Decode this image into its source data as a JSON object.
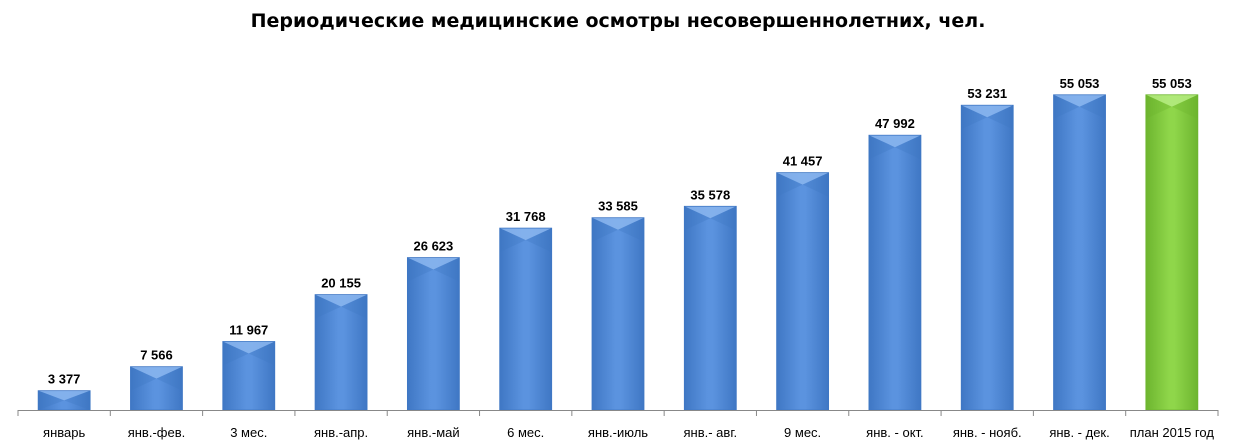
{
  "chart_data": {
    "type": "bar",
    "title": "Периодические медицинские осмотры несовершеннолетних, чел.",
    "categories": [
      "январь",
      "янв.-фев.",
      "3 мес.",
      "янв.-апр.",
      "янв.-май",
      "6 мес.",
      "янв.-июль",
      "янв.- авг.",
      "9 мес.",
      "янв. - окт.",
      "янв. - нояб.",
      "янв. - дек.",
      "план 2015 год"
    ],
    "values": [
      3377,
      7566,
      11967,
      20155,
      26623,
      31768,
      33585,
      35578,
      41457,
      47992,
      53231,
      55053,
      55053
    ],
    "value_labels": [
      "3 377",
      "7 566",
      "11 967",
      "20 155",
      "26 623",
      "31 768",
      "33 585",
      "35 578",
      "41 457",
      "47 992",
      "53 231",
      "55 053",
      "55 053"
    ],
    "ylim": [
      0,
      62000
    ],
    "grid": false,
    "xlabel": "",
    "ylabel": "",
    "colors": {
      "bar": "#5b93df",
      "bar_dark": "#3f77c4",
      "bar_light": "#8bb6ee",
      "highlight": "#8fd64a",
      "highlight_dark": "#6db52f",
      "highlight_light": "#b6ec82",
      "axis": "#888888"
    },
    "highlight_index": 12
  }
}
